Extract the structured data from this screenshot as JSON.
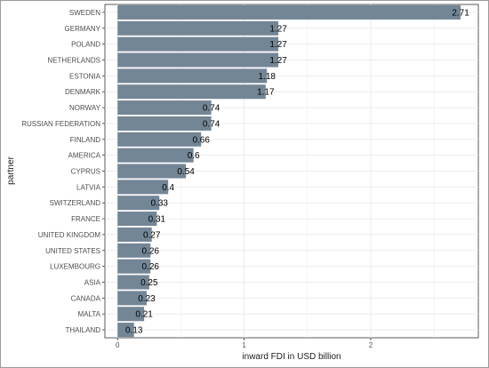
{
  "chart_data": {
    "type": "bar",
    "orientation": "horizontal",
    "categories": [
      "SWEDEN",
      "GERMANY",
      "POLAND",
      "NETHERLANDS",
      "ESTONIA",
      "DENMARK",
      "NORWAY",
      "RUSSIAN FEDERATION",
      "FINLAND",
      "AMERICA",
      "CYPRUS",
      "LATVIA",
      "SWITZERLAND",
      "FRANCE",
      "UNITED KINGDOM",
      "UNITED STATES",
      "LUXEMBOURG",
      "ASIA",
      "CANADA",
      "MALTA",
      "THAILAND"
    ],
    "values": [
      2.71,
      1.27,
      1.27,
      1.27,
      1.18,
      1.17,
      0.74,
      0.74,
      0.66,
      0.6,
      0.54,
      0.4,
      0.33,
      0.31,
      0.27,
      0.26,
      0.26,
      0.25,
      0.23,
      0.21,
      0.13
    ],
    "value_labels": [
      "2.71",
      "1.27",
      "1.27",
      "1.27",
      "1.18",
      "1.17",
      "0.74",
      "0.74",
      "0.66",
      "0.6",
      "0.54",
      "0.4",
      "0.33",
      "0.31",
      "0.27",
      "0.26",
      "0.26",
      "0.25",
      "0.23",
      "0.21",
      "0.13"
    ],
    "xlabel": "inward FDI in USD billion",
    "ylabel": "partner",
    "xticks": [
      0,
      1,
      2
    ],
    "xlim": [
      -0.1,
      2.85
    ],
    "grid": true,
    "bar_color": "#738696",
    "grid_color": "#ebebeb"
  }
}
